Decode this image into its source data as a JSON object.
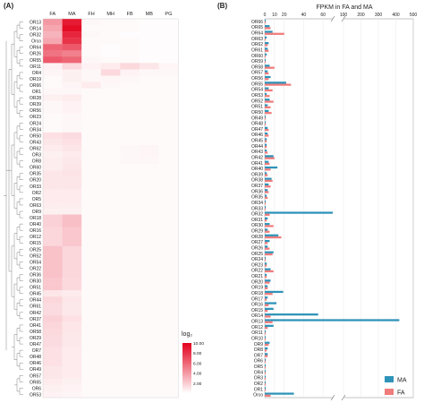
{
  "panel_a_label": "(A)",
  "panel_b_label": "(B)",
  "chart_data": [
    {
      "type": "heatmap",
      "columns": [
        "FA",
        "MA",
        "FH",
        "MH",
        "FB",
        "MB",
        "PG"
      ],
      "rows": [
        "OR13",
        "OR14",
        "OR32",
        "Orco",
        "OR64",
        "OR26",
        "OR55",
        "OR11",
        "OR4",
        "OR19",
        "OR66",
        "OR1",
        "OR28",
        "OR39",
        "OR56",
        "OR23",
        "OR24",
        "OR34",
        "OR50",
        "OR43",
        "OR62",
        "OR3",
        "OR8",
        "OR60",
        "OR35",
        "OR20",
        "OR33",
        "OR2",
        "OR5",
        "OR63",
        "OR9",
        "OR18",
        "OR40",
        "OR16",
        "OR12",
        "OR15",
        "OR25",
        "OR52",
        "OR54",
        "OR22",
        "OR36",
        "OR30",
        "OR51",
        "OR45",
        "OR44",
        "OR61",
        "OR42",
        "OR37",
        "OR41",
        "OR58",
        "OR29",
        "OR47",
        "OR7",
        "OR48",
        "OR46",
        "OR49",
        "OR57",
        "OR65",
        "OR6",
        "OR53"
      ],
      "values": [
        [
          4.0,
          9.0,
          0.3,
          0.2,
          0.2,
          0.1,
          0.1
        ],
        [
          3.5,
          9.5,
          0.2,
          0.2,
          0.2,
          0.1,
          0.1
        ],
        [
          3.0,
          8.5,
          0.3,
          0.2,
          0.1,
          0.1,
          0.1
        ],
        [
          3.5,
          8.0,
          0.2,
          0.2,
          0.2,
          0.1,
          0.1
        ],
        [
          6.0,
          6.5,
          0.2,
          0.1,
          0.2,
          0.1,
          0.1
        ],
        [
          5.5,
          5.0,
          0.2,
          0.1,
          0.2,
          0.1,
          0.1
        ],
        [
          6.5,
          6.0,
          0.3,
          0.2,
          0.2,
          0.1,
          0.1
        ],
        [
          0.5,
          1.5,
          0.5,
          0.8,
          1.5,
          1.0,
          0.4
        ],
        [
          0.4,
          0.6,
          0.3,
          1.5,
          0.5,
          0.3,
          0.3
        ],
        [
          0.2,
          0.6,
          0.3,
          0.4,
          0.3,
          0.2,
          0.2
        ],
        [
          0.2,
          0.4,
          0.8,
          0.3,
          0.2,
          0.2,
          0.2
        ],
        [
          0.3,
          0.3,
          0.2,
          0.2,
          0.2,
          0.2,
          0.2
        ],
        [
          0.6,
          0.8,
          0.2,
          0.2,
          0.2,
          0.2,
          0.2
        ],
        [
          0.3,
          0.5,
          0.2,
          0.2,
          0.2,
          0.2,
          0.2
        ],
        [
          0.3,
          0.5,
          0.2,
          0.2,
          0.2,
          0.2,
          0.2
        ],
        [
          0.2,
          0.3,
          0.2,
          0.2,
          0.2,
          0.2,
          0.2
        ],
        [
          0.2,
          0.3,
          0.2,
          0.2,
          0.2,
          0.2,
          0.2
        ],
        [
          0.2,
          0.3,
          0.2,
          0.2,
          0.2,
          0.2,
          0.2
        ],
        [
          1.2,
          1.4,
          0.2,
          0.2,
          0.2,
          0.2,
          0.2
        ],
        [
          1.0,
          1.2,
          0.2,
          0.2,
          0.2,
          0.2,
          0.2
        ],
        [
          0.8,
          1.0,
          0.2,
          0.2,
          0.3,
          0.4,
          0.2
        ],
        [
          0.6,
          0.8,
          0.2,
          0.2,
          0.3,
          0.4,
          0.2
        ],
        [
          0.7,
          0.9,
          0.2,
          0.2,
          0.3,
          0.3,
          0.2
        ],
        [
          0.7,
          1.0,
          0.2,
          0.2,
          0.2,
          0.2,
          0.2
        ],
        [
          1.0,
          1.1,
          0.2,
          0.2,
          0.2,
          0.2,
          0.2
        ],
        [
          1.0,
          1.0,
          0.2,
          0.2,
          0.2,
          0.2,
          0.2
        ],
        [
          1.0,
          1.0,
          0.2,
          0.2,
          0.2,
          0.2,
          0.2
        ],
        [
          0.8,
          0.8,
          0.2,
          0.2,
          0.2,
          0.2,
          0.2
        ],
        [
          0.8,
          0.8,
          0.2,
          0.2,
          0.2,
          0.2,
          0.2
        ],
        [
          0.7,
          0.7,
          0.2,
          0.2,
          0.2,
          0.2,
          0.2
        ],
        [
          0.6,
          0.6,
          0.2,
          0.2,
          0.2,
          0.2,
          0.2
        ],
        [
          1.8,
          2.5,
          0.2,
          0.2,
          0.2,
          0.2,
          0.2
        ],
        [
          1.8,
          2.5,
          0.2,
          0.2,
          0.2,
          0.2,
          0.2
        ],
        [
          1.6,
          2.2,
          0.2,
          0.2,
          0.2,
          0.2,
          0.2
        ],
        [
          1.6,
          2.2,
          0.2,
          0.2,
          0.2,
          0.2,
          0.2
        ],
        [
          1.6,
          2.2,
          0.2,
          0.2,
          0.2,
          0.2,
          0.2
        ],
        [
          2.4,
          1.6,
          0.2,
          0.2,
          0.2,
          0.2,
          0.2
        ],
        [
          2.4,
          1.6,
          0.2,
          0.2,
          0.2,
          0.2,
          0.2
        ],
        [
          2.4,
          1.6,
          0.2,
          0.2,
          0.2,
          0.2,
          0.2
        ],
        [
          2.4,
          1.6,
          0.2,
          0.2,
          0.2,
          0.2,
          0.2
        ],
        [
          2.4,
          1.6,
          0.2,
          0.2,
          0.2,
          0.2,
          0.2
        ],
        [
          2.2,
          1.5,
          0.2,
          0.2,
          0.2,
          0.2,
          0.2
        ],
        [
          2.2,
          1.5,
          0.2,
          0.2,
          0.2,
          0.2,
          0.2
        ],
        [
          1.0,
          0.8,
          0.2,
          0.2,
          0.2,
          0.2,
          0.2
        ],
        [
          1.6,
          1.0,
          0.2,
          0.2,
          0.2,
          0.2,
          0.2
        ],
        [
          1.4,
          0.9,
          0.2,
          0.2,
          0.2,
          0.2,
          0.2
        ],
        [
          1.4,
          0.9,
          0.2,
          0.2,
          0.2,
          0.2,
          0.2
        ],
        [
          1.8,
          1.2,
          0.2,
          0.2,
          0.2,
          0.2,
          0.2
        ],
        [
          1.6,
          1.0,
          0.2,
          0.2,
          0.2,
          0.2,
          0.2
        ],
        [
          1.5,
          1.0,
          0.2,
          0.2,
          0.2,
          0.2,
          0.2
        ],
        [
          1.4,
          0.9,
          0.2,
          0.2,
          0.2,
          0.2,
          0.2
        ],
        [
          1.4,
          0.9,
          0.2,
          0.2,
          0.2,
          0.2,
          0.2
        ],
        [
          1.2,
          0.8,
          0.2,
          0.2,
          0.2,
          0.2,
          0.2
        ],
        [
          1.2,
          0.8,
          0.2,
          0.2,
          0.2,
          0.2,
          0.2
        ],
        [
          1.2,
          0.8,
          0.2,
          0.2,
          0.2,
          0.2,
          0.2
        ],
        [
          1.0,
          0.8,
          0.2,
          0.2,
          0.2,
          0.2,
          0.2
        ],
        [
          1.0,
          0.8,
          0.2,
          0.2,
          0.2,
          0.2,
          0.2
        ],
        [
          0.8,
          0.6,
          0.2,
          0.2,
          0.2,
          0.2,
          0.2
        ],
        [
          0.6,
          0.5,
          0.2,
          0.2,
          0.2,
          0.2,
          0.2
        ],
        [
          0.5,
          0.4,
          0.2,
          0.2,
          0.2,
          0.2,
          0.2
        ]
      ],
      "legend_title": "log₂",
      "legend_ticks": [
        "10.00",
        "8.00",
        "6.00",
        "4.00",
        "2.00"
      ],
      "legend_range": [
        0,
        10
      ],
      "colors": {
        "low": "#ffffff",
        "high": "#e3001b"
      }
    },
    {
      "type": "bar",
      "orientation": "horizontal",
      "title": "FPKM in FA and MA",
      "x_ticks": [
        "0",
        "10",
        "20",
        "40",
        "60",
        "100",
        "200",
        "300",
        "400",
        "500"
      ],
      "x_axis_break": [
        70,
        95
      ],
      "legend": [
        {
          "name": "MA",
          "color": "#2e93b9"
        },
        {
          "name": "FA",
          "color": "#f07c7c"
        }
      ],
      "categories": [
        "OR66",
        "OR65",
        "OR64",
        "OR63",
        "OR62",
        "OR61",
        "OR60",
        "OR59",
        "OR58",
        "OR57",
        "OR56",
        "OR55",
        "OR54",
        "OR53",
        "OR52",
        "OR51",
        "OR50",
        "OR49",
        "OR48",
        "OR47",
        "OR46",
        "OR45",
        "OR44",
        "OR43",
        "OR42",
        "OR41",
        "OR40",
        "OR39",
        "OR38",
        "OR37",
        "OR36",
        "OR35",
        "OR34",
        "OR33",
        "OR32",
        "OR31",
        "OR30",
        "OR29",
        "OR28",
        "OR27",
        "OR26",
        "OR25",
        "OR24",
        "OR23",
        "OR22",
        "OR21",
        "OR20",
        "OR19",
        "OR18",
        "OR17",
        "OR16",
        "OR15",
        "OR14",
        "OR13",
        "OR12",
        "OR11",
        "OR10",
        "OR9",
        "OR8",
        "OR7",
        "OR6",
        "OR5",
        "OR4",
        "OR3",
        "OR2",
        "OR1",
        "Orco"
      ],
      "series": [
        {
          "name": "MA",
          "values": [
            1,
            5,
            8,
            2,
            4,
            3,
            2,
            1,
            5,
            3,
            6,
            22,
            4,
            2,
            5,
            3,
            4,
            1,
            1,
            3,
            3,
            2,
            2,
            2,
            9,
            4,
            13,
            2,
            7,
            4,
            3,
            2,
            1,
            1,
            80,
            3,
            5,
            3,
            14,
            5,
            3,
            9,
            1,
            2,
            6,
            2,
            6,
            3,
            19,
            3,
            12,
            9,
            55,
            420,
            9,
            1,
            1,
            5,
            3,
            3,
            1,
            1,
            1,
            1,
            1,
            1,
            30
          ]
        },
        {
          "name": "FA",
          "values": [
            1,
            6,
            20,
            1,
            3,
            4,
            1,
            1,
            10,
            4,
            4,
            27,
            8,
            5,
            9,
            6,
            7,
            1,
            1,
            4,
            4,
            2,
            2,
            3,
            10,
            5,
            6,
            3,
            8,
            6,
            4,
            3,
            1,
            1,
            5,
            2,
            9,
            5,
            17,
            3,
            5,
            8,
            1,
            2,
            9,
            2,
            5,
            3,
            8,
            2,
            4,
            3,
            6,
            8,
            3,
            1,
            1,
            4,
            2,
            3,
            1,
            1,
            1,
            1,
            1,
            1,
            6
          ]
        }
      ]
    }
  ]
}
